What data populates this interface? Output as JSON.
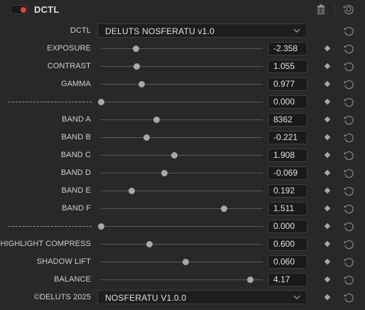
{
  "header": {
    "title": "DCTL",
    "enabled": true
  },
  "dctl": {
    "label": "DCTL",
    "selected": "DELUTS NOSFERATU v1.0"
  },
  "params": [
    {
      "label": "EXPOSURE",
      "value": "-2.358",
      "level": 0.215
    },
    {
      "label": "CONTRAST",
      "value": "1.055",
      "level": 0.22
    },
    {
      "label": "GAMMA",
      "value": "0.977",
      "level": 0.25
    },
    {
      "label": "",
      "value": "0.000",
      "level": 0.0,
      "separator": true
    },
    {
      "label": "BAND A",
      "value": "8362",
      "level": 0.34
    },
    {
      "label": "BAND B",
      "value": "-0.221",
      "level": 0.28
    },
    {
      "label": "BAND C",
      "value": "1.908",
      "level": 0.45
    },
    {
      "label": "BAND D",
      "value": "-0.069",
      "level": 0.39
    },
    {
      "label": "BAND E",
      "value": "0.192",
      "level": 0.19
    },
    {
      "label": "BAND F",
      "value": "1.511",
      "level": 0.76
    },
    {
      "label": "",
      "value": "0.000",
      "level": 0.0,
      "separator": true
    },
    {
      "label": "HIGHLIGHT COMPRESS",
      "value": "0.600",
      "level": 0.3
    },
    {
      "label": "SHADOW LIFT",
      "value": "0.060",
      "level": 0.52
    },
    {
      "label": "BALANCE",
      "value": "4.17",
      "level": 0.92
    }
  ],
  "footer": {
    "label": "©DELUTS 2025",
    "selected": "NOSFERATU V1.0.0"
  },
  "icons": {
    "trash": "trash-icon",
    "reset": "reset-icon",
    "keyframe": "keyframe-diamond-icon",
    "chevron": "chevron-down-icon"
  },
  "colors": {
    "background": "#28282a",
    "toggle_on": "#e8423a",
    "value_box": "#1a1a1b",
    "thumb": "#a8a8a8"
  }
}
